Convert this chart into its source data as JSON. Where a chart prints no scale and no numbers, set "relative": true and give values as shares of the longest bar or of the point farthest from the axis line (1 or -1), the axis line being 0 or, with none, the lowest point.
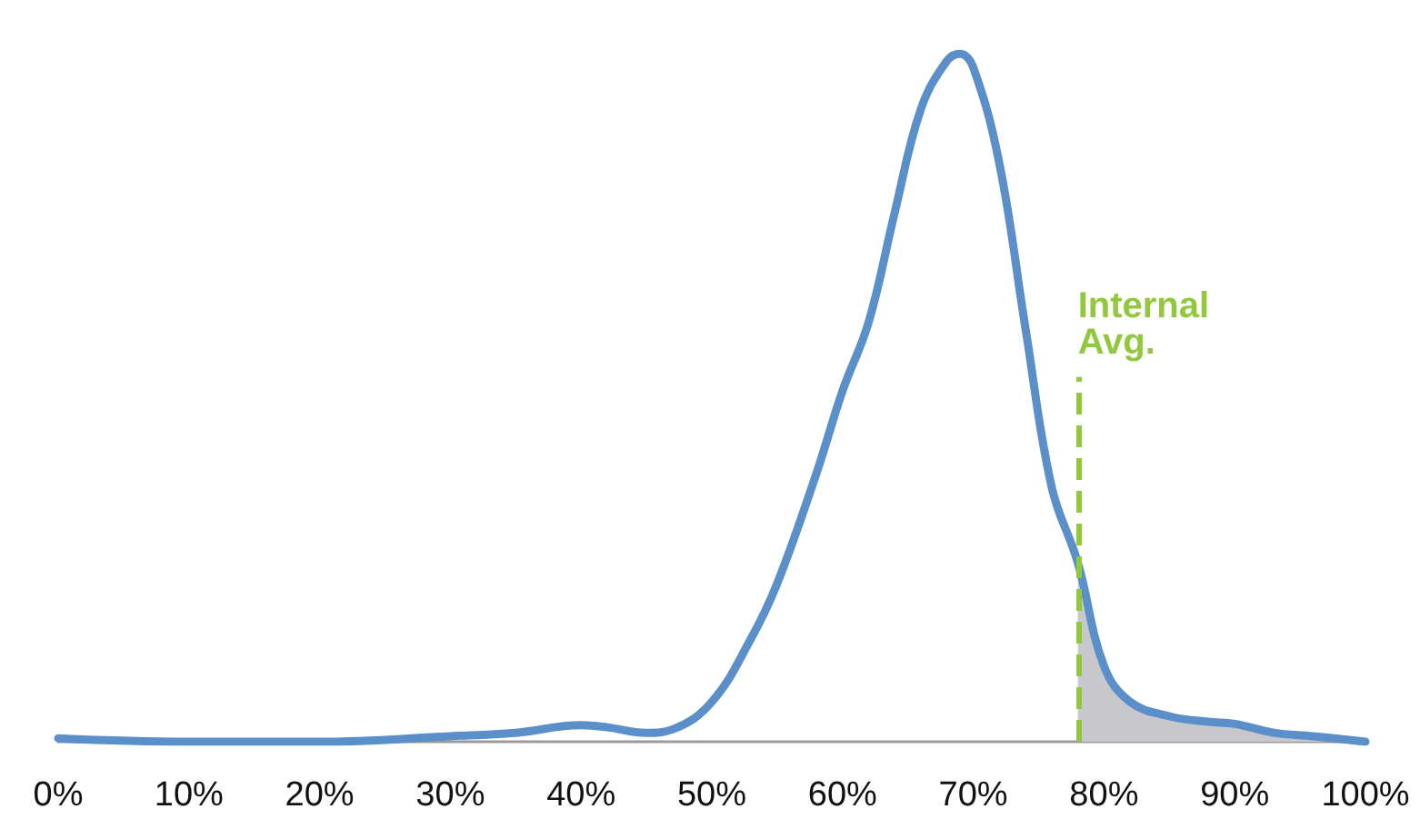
{
  "chart_data": {
    "type": "line",
    "relative": true,
    "grid": false,
    "marker": "none",
    "xlim": [
      0,
      100
    ],
    "xticks": [
      {
        "value": 0,
        "label": "0%"
      },
      {
        "value": 10,
        "label": "10%"
      },
      {
        "value": 20,
        "label": "20%"
      },
      {
        "value": 30,
        "label": "30%"
      },
      {
        "value": 40,
        "label": "40%"
      },
      {
        "value": 50,
        "label": "50%"
      },
      {
        "value": 60,
        "label": "60%"
      },
      {
        "value": 70,
        "label": "70%"
      },
      {
        "value": 80,
        "label": "80%"
      },
      {
        "value": 90,
        "label": "90%"
      },
      {
        "value": 100,
        "label": "100%"
      }
    ],
    "series": [
      {
        "type": "area",
        "color": "#c8c8cc",
        "x": [
          78,
          80,
          82,
          85,
          88,
          90,
          93,
          96,
          100
        ],
        "values": [
          0.26,
          0.11,
          0.058,
          0.037,
          0.029,
          0.026,
          0.013,
          0.008,
          0
        ]
      },
      {
        "color": "#5b8fc9",
        "x": [
          0,
          10,
          20,
          30,
          35,
          40,
          42,
          45,
          47,
          50,
          53,
          55,
          58,
          60,
          62,
          64,
          66,
          68,
          69,
          70,
          72,
          74,
          76,
          78,
          80,
          82,
          85,
          88,
          90,
          93,
          96,
          100
        ],
        "values": [
          0.005,
          0,
          0,
          0.008,
          0.013,
          0.024,
          0.021,
          0.013,
          0.018,
          0.058,
          0.15,
          0.23,
          0.39,
          0.51,
          0.61,
          0.77,
          0.92,
          0.99,
          1,
          0.98,
          0.84,
          0.6,
          0.37,
          0.26,
          0.11,
          0.058,
          0.037,
          0.029,
          0.026,
          0.013,
          0.008,
          0
        ]
      }
    ],
    "ref_lines": [
      {
        "axis": "x",
        "value": 78,
        "label": "Internal Avg.",
        "color": "#92c83e",
        "line_style": "dashed"
      }
    ]
  }
}
